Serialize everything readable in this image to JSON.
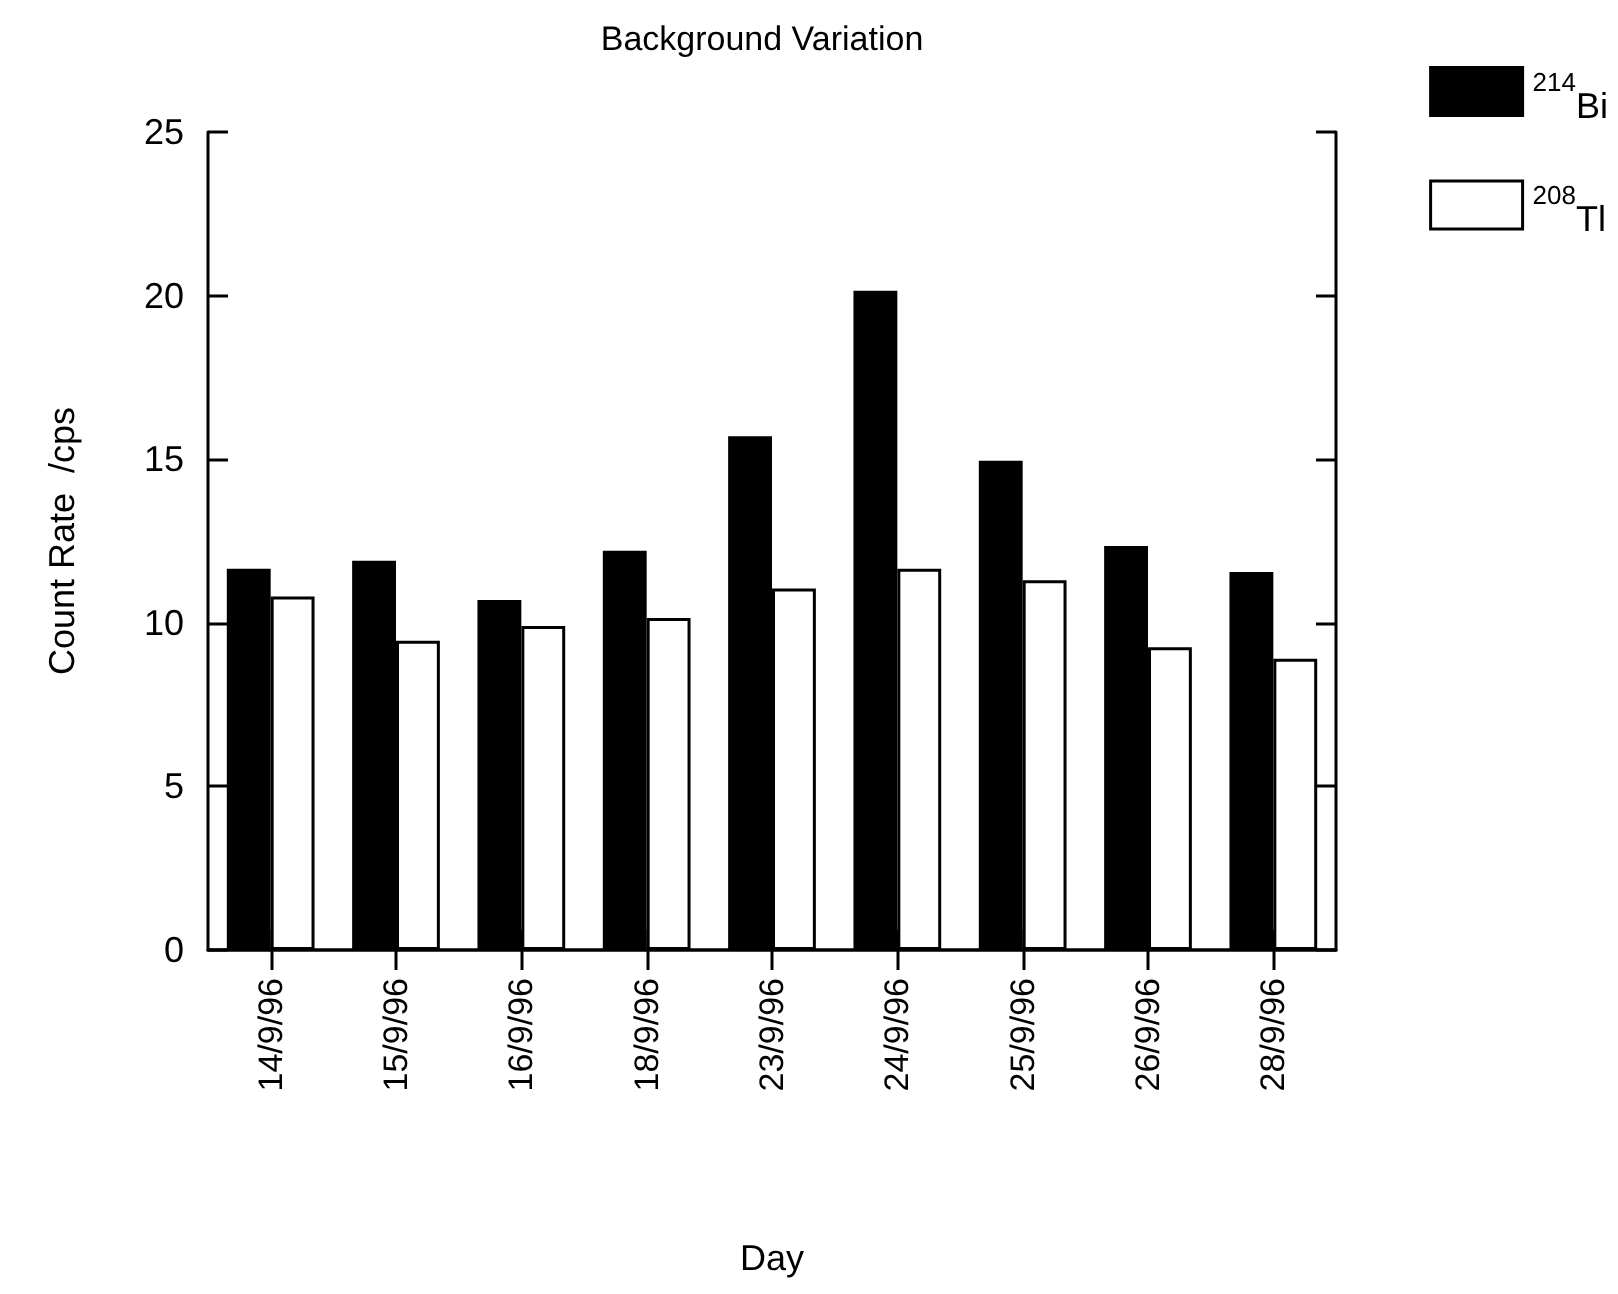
{
  "chart_data": {
    "type": "bar",
    "title": "Background Variation",
    "xlabel": "Day",
    "ylabel": "Count Rate  /cps",
    "categories": [
      "14/9/96",
      "15/9/96",
      "16/9/96",
      "18/9/96",
      "23/9/96",
      "24/9/96",
      "25/9/96",
      "26/9/96",
      "28/9/96"
    ],
    "series": [
      {
        "name": "$^{214}$Bi",
        "color": "#000000",
        "values": [
          11.65,
          11.9,
          10.7,
          12.2,
          15.7,
          20.15,
          14.95,
          12.35,
          11.55
        ]
      },
      {
        "name": "$^{208}$Tl",
        "color": "#ffffff",
        "values": [
          10.8,
          9.45,
          9.9,
          10.15,
          11.05,
          11.65,
          11.3,
          9.25,
          8.9
        ]
      }
    ],
    "ylim": [
      0,
      25
    ],
    "yticks": [
      0,
      5,
      10,
      15,
      20,
      25
    ],
    "grid": false,
    "legend": "top right"
  }
}
